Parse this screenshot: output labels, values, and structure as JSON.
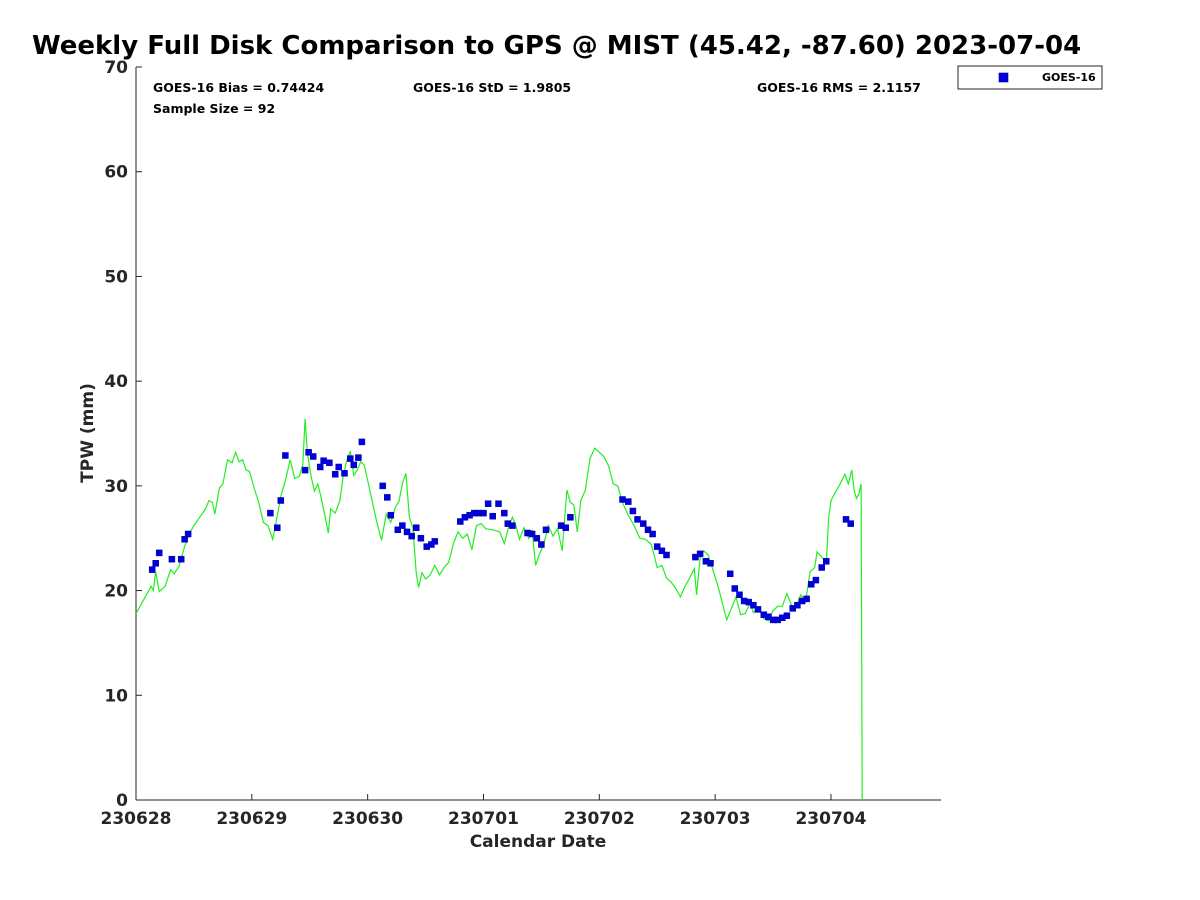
{
  "chart_data": {
    "type": "scatter",
    "title": "Weekly Full Disk Comparison to GPS @ MIST (45.42, -87.60) 2023-07-04",
    "xlabel": "Calendar Date",
    "ylabel": "TPW (mm)",
    "xlim": [
      0,
      6.95
    ],
    "ylim": [
      0,
      70
    ],
    "x_ticks": [
      {
        "value": 0,
        "label": "230628"
      },
      {
        "value": 1,
        "label": "230629"
      },
      {
        "value": 2,
        "label": "230630"
      },
      {
        "value": 3,
        "label": "230701"
      },
      {
        "value": 4,
        "label": "230702"
      },
      {
        "value": 5,
        "label": "230703"
      },
      {
        "value": 6,
        "label": "230704"
      }
    ],
    "y_ticks": [
      0,
      10,
      20,
      30,
      40,
      50,
      60,
      70
    ],
    "grid": false,
    "legend_position": "outside-top-right",
    "stats": {
      "bias": "GOES-16 Bias = 0.74424",
      "std": "GOES-16 StD = 1.9805",
      "rms": "GOES-16 RMS = 2.1157",
      "sample_size": "Sample Size = 92"
    },
    "series": [
      {
        "name": "GOES-16",
        "color": "#0000dd",
        "marker": "square",
        "points": [
          [
            0.14,
            22.0
          ],
          [
            0.17,
            22.6
          ],
          [
            0.2,
            23.6
          ],
          [
            0.31,
            23.0
          ],
          [
            0.39,
            23.0
          ],
          [
            0.42,
            24.9
          ],
          [
            0.45,
            25.4
          ],
          [
            1.16,
            27.4
          ],
          [
            1.22,
            26.0
          ],
          [
            1.25,
            28.6
          ],
          [
            1.29,
            32.9
          ],
          [
            1.46,
            31.5
          ],
          [
            1.49,
            33.2
          ],
          [
            1.53,
            32.8
          ],
          [
            1.59,
            31.8
          ],
          [
            1.62,
            32.4
          ],
          [
            1.67,
            32.2
          ],
          [
            1.72,
            31.1
          ],
          [
            1.75,
            31.8
          ],
          [
            1.8,
            31.2
          ],
          [
            1.85,
            32.6
          ],
          [
            1.88,
            32.0
          ],
          [
            1.92,
            32.7
          ],
          [
            1.95,
            34.2
          ],
          [
            2.13,
            30.0
          ],
          [
            2.17,
            28.9
          ],
          [
            2.2,
            27.2
          ],
          [
            2.26,
            25.8
          ],
          [
            2.3,
            26.2
          ],
          [
            2.34,
            25.6
          ],
          [
            2.38,
            25.2
          ],
          [
            2.42,
            26.0
          ],
          [
            2.46,
            25.0
          ],
          [
            2.51,
            24.2
          ],
          [
            2.55,
            24.4
          ],
          [
            2.58,
            24.7
          ],
          [
            2.8,
            26.6
          ],
          [
            2.84,
            27.0
          ],
          [
            2.88,
            27.2
          ],
          [
            2.92,
            27.4
          ],
          [
            2.96,
            27.4
          ],
          [
            3.0,
            27.4
          ],
          [
            3.04,
            28.3
          ],
          [
            3.08,
            27.1
          ],
          [
            3.13,
            28.3
          ],
          [
            3.18,
            27.4
          ],
          [
            3.21,
            26.4
          ],
          [
            3.25,
            26.2
          ],
          [
            3.38,
            25.5
          ],
          [
            3.42,
            25.4
          ],
          [
            3.46,
            25.0
          ],
          [
            3.5,
            24.4
          ],
          [
            3.54,
            25.8
          ],
          [
            3.67,
            26.2
          ],
          [
            3.71,
            26.0
          ],
          [
            3.75,
            27.0
          ],
          [
            4.2,
            28.7
          ],
          [
            4.25,
            28.5
          ],
          [
            4.29,
            27.6
          ],
          [
            4.33,
            26.8
          ],
          [
            4.38,
            26.4
          ],
          [
            4.42,
            25.8
          ],
          [
            4.46,
            25.4
          ],
          [
            4.5,
            24.2
          ],
          [
            4.54,
            23.8
          ],
          [
            4.58,
            23.4
          ],
          [
            4.83,
            23.2
          ],
          [
            4.87,
            23.5
          ],
          [
            4.92,
            22.8
          ],
          [
            4.96,
            22.6
          ],
          [
            5.13,
            21.6
          ],
          [
            5.17,
            20.2
          ],
          [
            5.21,
            19.6
          ],
          [
            5.25,
            19.0
          ],
          [
            5.29,
            18.9
          ],
          [
            5.33,
            18.6
          ],
          [
            5.37,
            18.2
          ],
          [
            5.42,
            17.7
          ],
          [
            5.46,
            17.5
          ],
          [
            5.5,
            17.2
          ],
          [
            5.54,
            17.2
          ],
          [
            5.58,
            17.4
          ],
          [
            5.62,
            17.6
          ],
          [
            5.67,
            18.3
          ],
          [
            5.71,
            18.6
          ],
          [
            5.75,
            19.0
          ],
          [
            5.79,
            19.2
          ],
          [
            5.83,
            20.6
          ],
          [
            5.87,
            21.0
          ],
          [
            5.92,
            22.2
          ],
          [
            5.96,
            22.8
          ],
          [
            6.13,
            26.8
          ],
          [
            6.17,
            26.4
          ]
        ]
      },
      {
        "color": "#22ee22",
        "marker": "line",
        "points": [
          [
            0.0,
            17.8
          ],
          [
            0.05,
            18.8
          ],
          [
            0.1,
            19.8
          ],
          [
            0.13,
            20.4
          ],
          [
            0.15,
            20.0
          ],
          [
            0.17,
            21.8
          ],
          [
            0.2,
            19.9
          ],
          [
            0.25,
            20.4
          ],
          [
            0.3,
            22.0
          ],
          [
            0.33,
            21.6
          ],
          [
            0.37,
            22.3
          ],
          [
            0.42,
            24.2
          ],
          [
            0.46,
            25.4
          ],
          [
            0.5,
            26.2
          ],
          [
            0.55,
            27.0
          ],
          [
            0.6,
            27.8
          ],
          [
            0.63,
            28.6
          ],
          [
            0.66,
            28.4
          ],
          [
            0.68,
            27.3
          ],
          [
            0.72,
            29.8
          ],
          [
            0.75,
            30.2
          ],
          [
            0.79,
            32.5
          ],
          [
            0.83,
            32.2
          ],
          [
            0.86,
            33.2
          ],
          [
            0.89,
            32.3
          ],
          [
            0.92,
            32.5
          ],
          [
            0.95,
            31.5
          ],
          [
            0.98,
            31.4
          ],
          [
            1.02,
            29.8
          ],
          [
            1.06,
            28.4
          ],
          [
            1.1,
            26.5
          ],
          [
            1.14,
            26.2
          ],
          [
            1.18,
            24.9
          ],
          [
            1.21,
            26.6
          ],
          [
            1.25,
            29.0
          ],
          [
            1.29,
            30.5
          ],
          [
            1.33,
            32.5
          ],
          [
            1.37,
            30.7
          ],
          [
            1.41,
            30.9
          ],
          [
            1.44,
            32.0
          ],
          [
            1.46,
            36.4
          ],
          [
            1.48,
            33.1
          ],
          [
            1.51,
            31.0
          ],
          [
            1.54,
            29.5
          ],
          [
            1.57,
            30.2
          ],
          [
            1.6,
            28.8
          ],
          [
            1.63,
            27.2
          ],
          [
            1.66,
            25.5
          ],
          [
            1.68,
            27.8
          ],
          [
            1.72,
            27.4
          ],
          [
            1.76,
            28.6
          ],
          [
            1.79,
            31.0
          ],
          [
            1.82,
            32.4
          ],
          [
            1.85,
            33.3
          ],
          [
            1.88,
            31.0
          ],
          [
            1.91,
            31.5
          ],
          [
            1.94,
            32.3
          ],
          [
            1.97,
            32.0
          ],
          [
            2.0,
            30.5
          ],
          [
            2.04,
            28.5
          ],
          [
            2.08,
            26.5
          ],
          [
            2.12,
            24.8
          ],
          [
            2.16,
            27.3
          ],
          [
            2.2,
            26.5
          ],
          [
            2.24,
            28.0
          ],
          [
            2.27,
            28.5
          ],
          [
            2.3,
            30.2
          ],
          [
            2.33,
            31.2
          ],
          [
            2.36,
            27.0
          ],
          [
            2.39,
            26.0
          ],
          [
            2.42,
            21.6
          ],
          [
            2.44,
            20.3
          ],
          [
            2.47,
            21.7
          ],
          [
            2.5,
            21.1
          ],
          [
            2.54,
            21.5
          ],
          [
            2.58,
            22.4
          ],
          [
            2.62,
            21.5
          ],
          [
            2.66,
            22.2
          ],
          [
            2.7,
            22.7
          ],
          [
            2.74,
            24.5
          ],
          [
            2.78,
            25.6
          ],
          [
            2.82,
            25.0
          ],
          [
            2.86,
            25.4
          ],
          [
            2.9,
            23.9
          ],
          [
            2.94,
            26.2
          ],
          [
            2.98,
            26.4
          ],
          [
            3.02,
            25.9
          ],
          [
            3.08,
            25.8
          ],
          [
            3.14,
            25.6
          ],
          [
            3.18,
            24.5
          ],
          [
            3.22,
            26.2
          ],
          [
            3.25,
            27.0
          ],
          [
            3.28,
            26.2
          ],
          [
            3.31,
            24.9
          ],
          [
            3.35,
            26.0
          ],
          [
            3.39,
            25.0
          ],
          [
            3.42,
            25.8
          ],
          [
            3.45,
            22.4
          ],
          [
            3.48,
            23.4
          ],
          [
            3.52,
            24.4
          ],
          [
            3.56,
            26.2
          ],
          [
            3.6,
            25.2
          ],
          [
            3.64,
            25.9
          ],
          [
            3.68,
            23.8
          ],
          [
            3.72,
            29.6
          ],
          [
            3.75,
            28.4
          ],
          [
            3.78,
            28.2
          ],
          [
            3.81,
            25.6
          ],
          [
            3.84,
            28.6
          ],
          [
            3.88,
            29.6
          ],
          [
            3.92,
            32.6
          ],
          [
            3.96,
            33.6
          ],
          [
            4.0,
            33.2
          ],
          [
            4.04,
            32.8
          ],
          [
            4.08,
            31.9
          ],
          [
            4.12,
            30.2
          ],
          [
            4.16,
            30.0
          ],
          [
            4.2,
            28.4
          ],
          [
            4.25,
            27.2
          ],
          [
            4.3,
            26.2
          ],
          [
            4.35,
            25.0
          ],
          [
            4.4,
            24.9
          ],
          [
            4.45,
            24.4
          ],
          [
            4.5,
            22.2
          ],
          [
            4.54,
            22.4
          ],
          [
            4.58,
            21.2
          ],
          [
            4.62,
            20.8
          ],
          [
            4.66,
            20.2
          ],
          [
            4.7,
            19.4
          ],
          [
            4.74,
            20.4
          ],
          [
            4.78,
            21.2
          ],
          [
            4.82,
            22.1
          ],
          [
            4.84,
            19.6
          ],
          [
            4.87,
            23.1
          ],
          [
            4.9,
            23.8
          ],
          [
            4.94,
            23.4
          ],
          [
            4.98,
            22.0
          ],
          [
            5.02,
            20.6
          ],
          [
            5.06,
            18.9
          ],
          [
            5.1,
            17.2
          ],
          [
            5.14,
            18.3
          ],
          [
            5.18,
            19.4
          ],
          [
            5.22,
            17.7
          ],
          [
            5.26,
            17.8
          ],
          [
            5.3,
            18.8
          ],
          [
            5.33,
            17.9
          ],
          [
            5.37,
            18.4
          ],
          [
            5.42,
            17.3
          ],
          [
            5.46,
            17.1
          ],
          [
            5.5,
            18.1
          ],
          [
            5.54,
            18.5
          ],
          [
            5.58,
            18.5
          ],
          [
            5.62,
            19.7
          ],
          [
            5.66,
            18.6
          ],
          [
            5.7,
            18.5
          ],
          [
            5.74,
            19.6
          ],
          [
            5.78,
            18.9
          ],
          [
            5.82,
            21.8
          ],
          [
            5.86,
            22.2
          ],
          [
            5.88,
            23.7
          ],
          [
            5.92,
            23.2
          ],
          [
            5.96,
            22.6
          ],
          [
            5.98,
            26.9
          ],
          [
            6.0,
            28.6
          ],
          [
            6.04,
            29.4
          ],
          [
            6.08,
            30.2
          ],
          [
            6.12,
            31.1
          ],
          [
            6.15,
            30.2
          ],
          [
            6.18,
            31.5
          ],
          [
            6.2,
            29.6
          ],
          [
            6.22,
            28.8
          ],
          [
            6.24,
            29.2
          ],
          [
            6.26,
            30.2
          ],
          [
            6.27,
            0.0
          ]
        ]
      }
    ]
  }
}
